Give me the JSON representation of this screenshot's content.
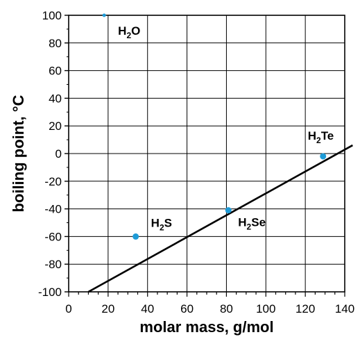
{
  "chart_data": {
    "type": "scatter",
    "xlabel": "molar mass, g/mol",
    "ylabel": "boiling point, °C",
    "xlim": [
      0,
      140
    ],
    "ylim": [
      -100,
      100
    ],
    "xticks": [
      0,
      20,
      40,
      60,
      80,
      100,
      120,
      140
    ],
    "yticks": [
      100,
      80,
      60,
      40,
      20,
      0,
      -20,
      -40,
      -60,
      -80,
      -100
    ],
    "grid": true,
    "point_color": "#1e9bd7",
    "points": [
      {
        "x": 18,
        "y": 100,
        "label": "H",
        "sub": "2",
        "suffix": "O"
      },
      {
        "x": 34,
        "y": -60,
        "label": "H",
        "sub": "2",
        "suffix": "S"
      },
      {
        "x": 81,
        "y": -41,
        "label": "H",
        "sub": "2",
        "suffix": "Se"
      },
      {
        "x": 129,
        "y": -2,
        "label": "H",
        "sub": "2",
        "suffix": "Te"
      }
    ],
    "trendline": {
      "x": [
        10,
        144
      ],
      "y": [
        -100,
        6
      ]
    }
  }
}
